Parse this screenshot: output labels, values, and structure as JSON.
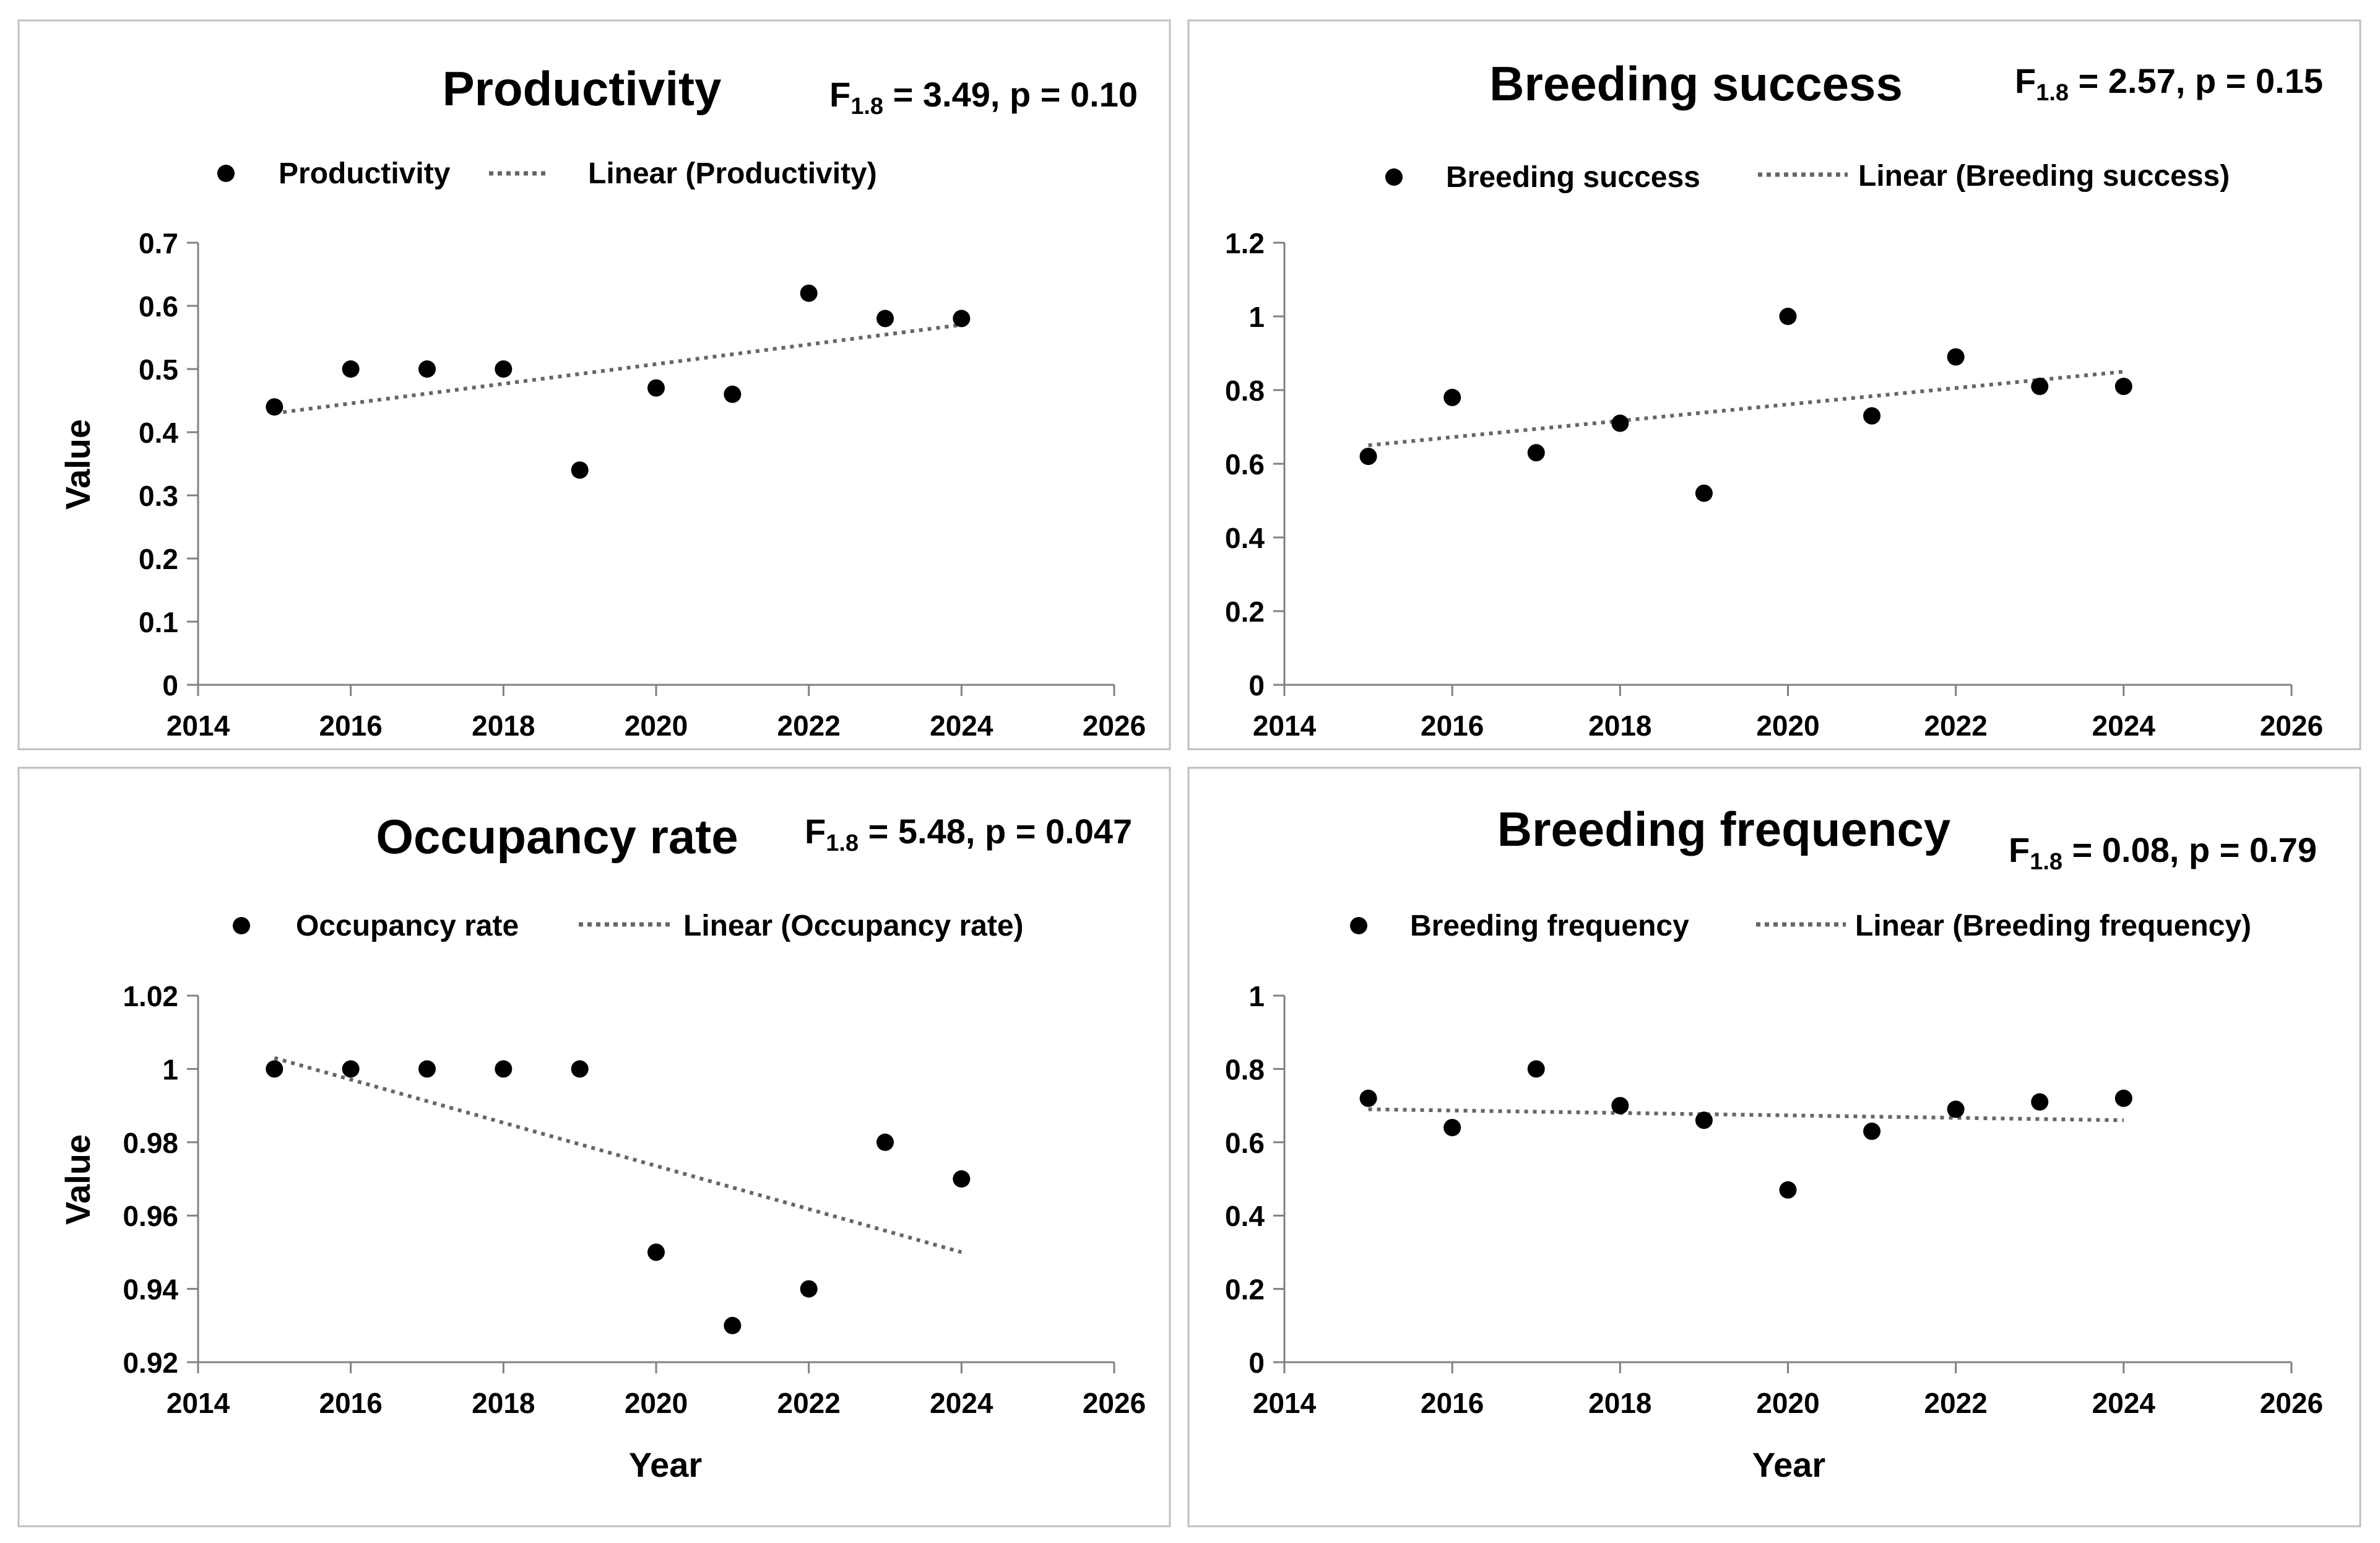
{
  "chart_data": [
    {
      "type": "scatter",
      "title": "Productivity",
      "stat": {
        "main": "F",
        "sub": "1.8",
        "rest": " = 3.49,  p = 0.10"
      },
      "series": [
        {
          "name": "Productivity",
          "x": [
            2015,
            2016,
            2017,
            2018,
            2019,
            2020,
            2021,
            2022,
            2023,
            2024
          ],
          "y": [
            0.44,
            0.5,
            0.5,
            0.5,
            0.34,
            0.47,
            0.46,
            0.62,
            0.58,
            0.58
          ]
        }
      ],
      "trendline": {
        "name": "Linear (Productivity)",
        "x": [
          2015,
          2024
        ],
        "y": [
          0.43,
          0.57
        ]
      },
      "xlim": [
        2014,
        2026
      ],
      "xticks": [
        "2014",
        "2016",
        "2018",
        "2020",
        "2022",
        "2024",
        "2026"
      ],
      "ylim": [
        0,
        0.7
      ],
      "yticks": [
        "0",
        "0.1",
        "0.2",
        "0.3",
        "0.4",
        "0.5",
        "0.6",
        "0.7"
      ],
      "xlabel": "",
      "ylabel": "Value",
      "grid": false
    },
    {
      "type": "scatter",
      "title": "Breeding success",
      "stat": {
        "main": "F",
        "sub": "1.8",
        "rest": " = 2.57,  p = 0.15"
      },
      "series": [
        {
          "name": "Breeding success",
          "x": [
            2015,
            2016,
            2017,
            2018,
            2019,
            2020,
            2021,
            2022,
            2023,
            2024
          ],
          "y": [
            0.62,
            0.78,
            0.63,
            0.71,
            0.52,
            1.0,
            0.73,
            0.89,
            0.81,
            0.81
          ]
        }
      ],
      "trendline": {
        "name": "Linear (Breeding success)",
        "x": [
          2015,
          2024
        ],
        "y": [
          0.65,
          0.85
        ]
      },
      "xlim": [
        2014,
        2026
      ],
      "xticks": [
        "2014",
        "2016",
        "2018",
        "2020",
        "2022",
        "2024",
        "2026"
      ],
      "ylim": [
        0,
        1.2
      ],
      "yticks": [
        "0",
        "0.2",
        "0.4",
        "0.6",
        "0.8",
        "1",
        "1.2"
      ],
      "xlabel": "",
      "ylabel": "",
      "grid": false
    },
    {
      "type": "scatter",
      "title": "Occupancy rate",
      "stat": {
        "main": "F",
        "sub": "1.8",
        "rest": " = 5.48,  p = 0.047"
      },
      "series": [
        {
          "name": "Occupancy rate",
          "x": [
            2015,
            2016,
            2017,
            2018,
            2019,
            2020,
            2021,
            2022,
            2023,
            2024
          ],
          "y": [
            1.0,
            1.0,
            1.0,
            1.0,
            1.0,
            0.95,
            0.93,
            0.94,
            0.98,
            0.97
          ]
        }
      ],
      "trendline": {
        "name": "Linear (Occupancy rate)",
        "x": [
          2015,
          2024
        ],
        "y": [
          1.003,
          0.95
        ]
      },
      "xlim": [
        2014,
        2026
      ],
      "xticks": [
        "2014",
        "2016",
        "2018",
        "2020",
        "2022",
        "2024",
        "2026"
      ],
      "ylim": [
        0.92,
        1.02
      ],
      "yticks": [
        "0.92",
        "0.94",
        "0.96",
        "0.98",
        "1",
        "1.02"
      ],
      "xlabel": "Year",
      "ylabel": "Value",
      "grid": false
    },
    {
      "type": "scatter",
      "title": "Breeding frequency",
      "stat": {
        "main": "F",
        "sub": "1.8",
        "rest": " = 0.08,  p = 0.79"
      },
      "series": [
        {
          "name": "Breeding frequency",
          "x": [
            2015,
            2016,
            2017,
            2018,
            2019,
            2020,
            2021,
            2022,
            2023,
            2024
          ],
          "y": [
            0.72,
            0.64,
            0.8,
            0.7,
            0.66,
            0.47,
            0.63,
            0.69,
            0.71,
            0.72
          ]
        }
      ],
      "trendline": {
        "name": "Linear (Breeding frequency)",
        "x": [
          2015,
          2024
        ],
        "y": [
          0.69,
          0.66
        ]
      },
      "xlim": [
        2014,
        2026
      ],
      "xticks": [
        "2014",
        "2016",
        "2018",
        "2020",
        "2022",
        "2024",
        "2026"
      ],
      "ylim": [
        0,
        1
      ],
      "yticks": [
        "0",
        "0.2",
        "0.4",
        "0.6",
        "0.8",
        "1"
      ],
      "xlabel": "Year",
      "ylabel": "",
      "grid": false
    }
  ]
}
